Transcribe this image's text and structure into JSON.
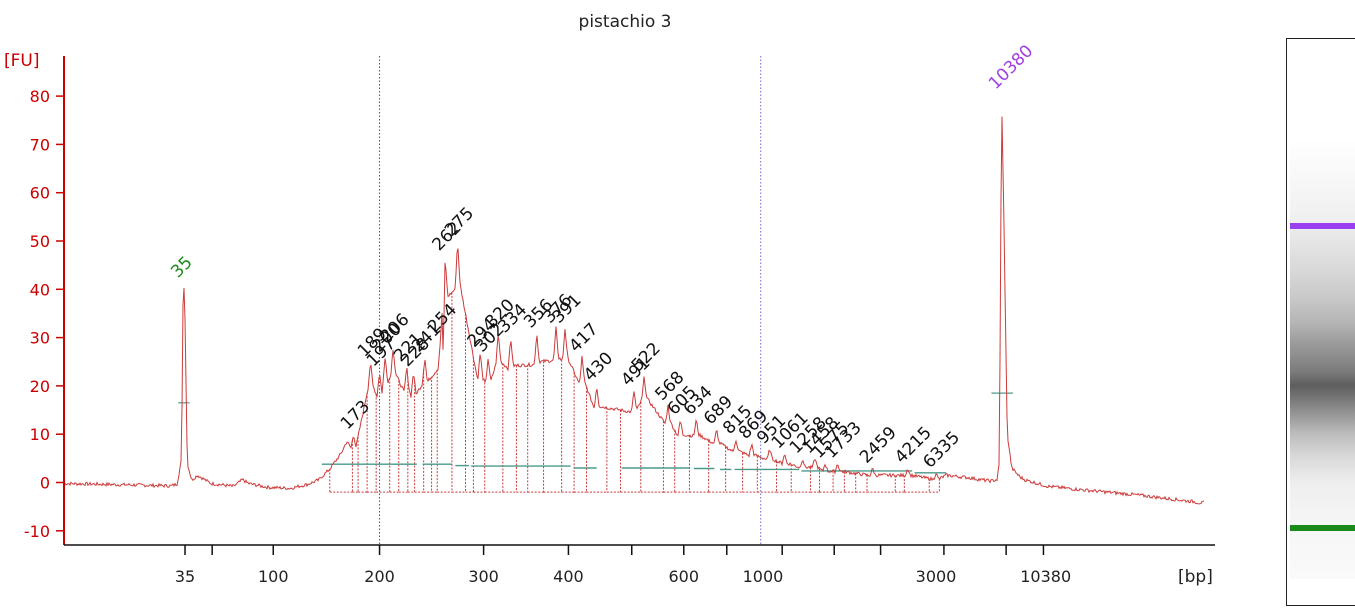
{
  "chart_data": {
    "type": "line",
    "title": "pistachio 3",
    "ylabel": "[FU]",
    "xlabel": "[bp]",
    "ylim": [
      -12,
      87
    ],
    "yticks": [
      -10,
      0,
      10,
      20,
      30,
      40,
      50,
      60,
      70,
      80
    ],
    "x_scale": "nonlinear (electropherogram, ladder-calibrated)",
    "xtick_labels": [
      "35",
      "100",
      "200",
      "300",
      "400",
      "600",
      "1000",
      "3000",
      "10380"
    ],
    "grid": "two vertical dotted lines at 200 and 1000 bp",
    "legend": "none",
    "markers": [
      {
        "label": "35",
        "fu": 41,
        "color": "#1a8a1a"
      },
      {
        "label": "10380",
        "fu": 80,
        "color": "#a040e0"
      }
    ],
    "peaks": [
      {
        "bp": "173",
        "fu": 10
      },
      {
        "bp": "189",
        "fu": 25
      },
      {
        "bp": "197",
        "fu": 23
      },
      {
        "bp": "200",
        "fu": 26
      },
      {
        "bp": "206",
        "fu": 28
      },
      {
        "bp": "221",
        "fu": 24
      },
      {
        "bp": "228",
        "fu": 23
      },
      {
        "bp": "241",
        "fu": 26
      },
      {
        "bp": "254",
        "fu": 30
      },
      {
        "bp": "262",
        "fu": 47
      },
      {
        "bp": "275",
        "fu": 50
      },
      {
        "bp": "294",
        "fu": 27
      },
      {
        "bp": "302",
        "fu": 26
      },
      {
        "bp": "320",
        "fu": 31
      },
      {
        "bp": "334",
        "fu": 30
      },
      {
        "bp": "356",
        "fu": 31
      },
      {
        "bp": "376",
        "fu": 32
      },
      {
        "bp": "391",
        "fu": 32
      },
      {
        "bp": "417",
        "fu": 26
      },
      {
        "bp": "430",
        "fu": 20
      },
      {
        "bp": "491",
        "fu": 19
      },
      {
        "bp": "522",
        "fu": 22
      },
      {
        "bp": "568",
        "fu": 16
      },
      {
        "bp": "605",
        "fu": 13
      },
      {
        "bp": "634",
        "fu": 13
      },
      {
        "bp": "689",
        "fu": 11
      },
      {
        "bp": "815",
        "fu": 9
      },
      {
        "bp": "869",
        "fu": 8
      },
      {
        "bp": "951",
        "fu": 7
      },
      {
        "bp": "1061",
        "fu": 6
      },
      {
        "bp": "1258",
        "fu": 5
      },
      {
        "bp": "1458",
        "fu": 5
      },
      {
        "bp": "1575",
        "fu": 4
      },
      {
        "bp": "1733",
        "fu": 4
      },
      {
        "bp": "2459",
        "fu": 3
      },
      {
        "bp": "4215",
        "fu": 3
      },
      {
        "bp": "6335",
        "fu": 2
      }
    ],
    "gel_image": {
      "upper_marker_color": "#9b40f0",
      "lower_marker_color": "#1a8a1a"
    }
  },
  "colors": {
    "axis": "#cc0000",
    "trace": "#cc3a3a",
    "baseline_segments": "#4a9a8a"
  }
}
